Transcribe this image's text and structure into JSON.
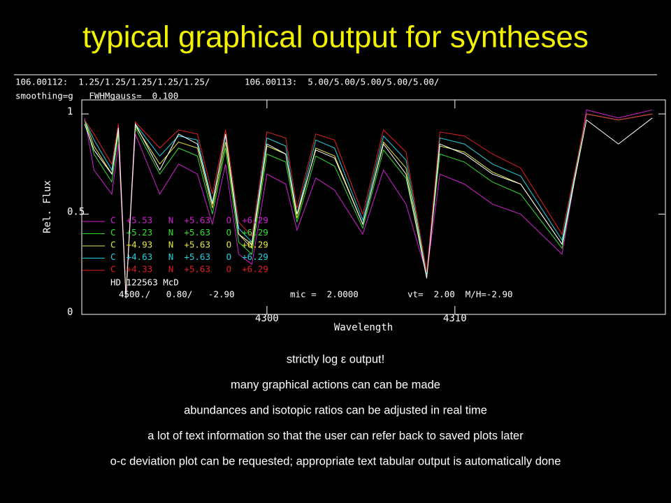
{
  "slide": {
    "title": "typical graphical output for syntheses",
    "notes": [
      "strictly log ε output!",
      "many graphical actions can can be made",
      "abundances and isotopic ratios can be adjusted in real time",
      "a lot of text information so that the user can refer back to saved plots later",
      "o-c deviation plot can be requested; appropriate text tabular output is automatically done"
    ]
  },
  "chart_data": {
    "type": "line",
    "header": [
      "106.00112:  1.25/1.25/1.25/1.25/1.25/",
      "106.00113:  5.00/5.00/5.00/5.00/5.00/",
      "smoothing=g   FWHMgauss=  0.100"
    ],
    "x_label": "Wavelength",
    "y_label": "Rel. Flux",
    "annotations": [
      "HD 122563 McD",
      "4500./   0.80/   -2.90",
      "mic =  2.0000",
      "vt=  2.00  M/H=-2.90"
    ],
    "xlim": [
      4290.15,
      4321.2
    ],
    "ylim": [
      0,
      1.07
    ],
    "xticks": [
      4300,
      4310
    ],
    "yticks": [
      0,
      0.5,
      1
    ],
    "x": [
      4290.3,
      4290.8,
      4291.75,
      4292.1,
      4292.5,
      4293.0,
      4294.3,
      4295.3,
      4296.3,
      4297.1,
      4297.8,
      4298.5,
      4299.2,
      4300.0,
      4301.0,
      4301.6,
      4302.6,
      4303.6,
      4305.1,
      4306.2,
      4307.4,
      4308.5,
      4309.2,
      4310.5,
      4312.0,
      4313.5,
      4315.7,
      4317.0,
      4318.7,
      4320.5
    ],
    "series": [
      {
        "name": "C  +5.53   N  +5.63   O  +6.29",
        "color": "#d020d0",
        "values": [
          0.98,
          0.72,
          0.6,
          0.85,
          0.1,
          0.9,
          0.6,
          0.75,
          0.7,
          0.45,
          0.75,
          0.3,
          0.25,
          0.7,
          0.65,
          0.42,
          0.68,
          0.62,
          0.4,
          0.72,
          0.55,
          0.2,
          0.7,
          0.65,
          0.55,
          0.5,
          0.3,
          1.02,
          0.98,
          1.02
        ]
      },
      {
        "name": "C  +5.23   N  +5.63   O  +6.29",
        "color": "#30e030",
        "values": [
          0.97,
          0.8,
          0.66,
          0.9,
          0.1,
          0.93,
          0.7,
          0.83,
          0.79,
          0.5,
          0.83,
          0.36,
          0.3,
          0.8,
          0.76,
          0.46,
          0.79,
          0.74,
          0.43,
          0.82,
          0.68,
          0.2,
          0.8,
          0.76,
          0.66,
          0.6,
          0.33,
          1.0,
          0.97,
          1.0
        ]
      },
      {
        "name": "C  +4.93   N  +5.63   O  +6.29",
        "color": "#e8e840",
        "values": [
          0.97,
          0.84,
          0.7,
          0.92,
          0.1,
          0.94,
          0.75,
          0.86,
          0.83,
          0.53,
          0.86,
          0.4,
          0.33,
          0.84,
          0.8,
          0.48,
          0.83,
          0.79,
          0.45,
          0.86,
          0.73,
          0.2,
          0.84,
          0.81,
          0.71,
          0.65,
          0.35,
          1.0,
          0.97,
          1.0
        ]
      },
      {
        "name": "C  +4.63   N  +5.63   O  +6.29",
        "color": "#20d0e0",
        "values": [
          0.97,
          0.87,
          0.72,
          0.94,
          0.1,
          0.95,
          0.79,
          0.89,
          0.87,
          0.56,
          0.89,
          0.43,
          0.36,
          0.88,
          0.84,
          0.5,
          0.87,
          0.83,
          0.47,
          0.89,
          0.77,
          0.2,
          0.88,
          0.85,
          0.75,
          0.69,
          0.37,
          1.0,
          0.97,
          1.0
        ]
      },
      {
        "name": "C  +4.33   N  +5.63   O  +6.29",
        "color": "#e02020",
        "values": [
          0.97,
          0.9,
          0.75,
          0.95,
          0.1,
          0.96,
          0.83,
          0.92,
          0.9,
          0.6,
          0.92,
          0.46,
          0.39,
          0.91,
          0.88,
          0.53,
          0.9,
          0.87,
          0.5,
          0.92,
          0.81,
          0.21,
          0.91,
          0.89,
          0.8,
          0.73,
          0.4,
          1.0,
          0.97,
          1.0
        ]
      },
      {
        "name": "HD 122563 McD",
        "color": "#ffffff",
        "values": [
          0.95,
          0.82,
          0.7,
          0.93,
          0.08,
          0.95,
          0.72,
          0.9,
          0.85,
          0.55,
          0.9,
          0.4,
          0.35,
          0.85,
          0.8,
          0.5,
          0.82,
          0.78,
          0.45,
          0.85,
          0.7,
          0.18,
          0.85,
          0.8,
          0.7,
          0.65,
          0.35,
          0.97,
          0.85,
          0.98
        ]
      }
    ]
  }
}
